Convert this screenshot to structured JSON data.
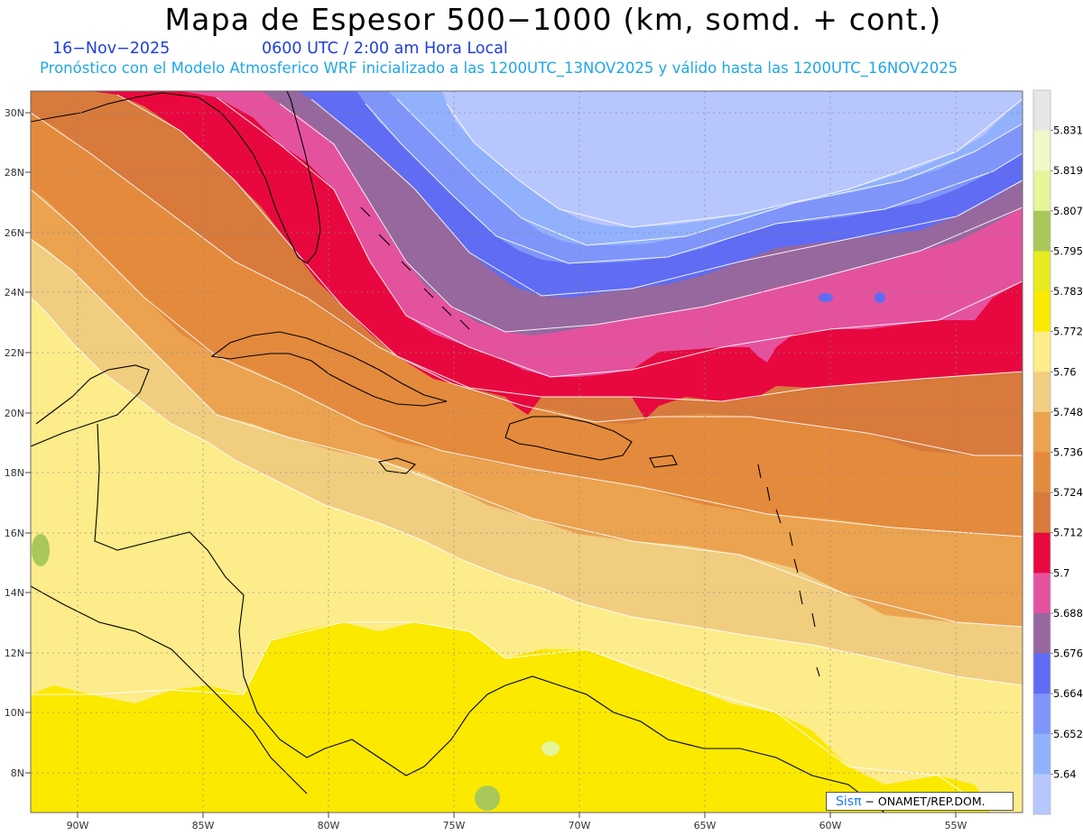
{
  "header": {
    "title": "Mapa de Espesor 500−1000 (km, somd. + cont.)",
    "date": "16−Nov−2025",
    "time": "0600 UTC / 2:00 am Hora Local",
    "description": "Pronóstico con el Modelo Atmosferico WRF inicializado a las 1200UTC_13NOV2025 y válido hasta las  1200UTC_16NOV2025"
  },
  "axes": {
    "lon_labels": [
      "90W",
      "85W",
      "80W",
      "75W",
      "70W",
      "65W",
      "60W",
      "55W"
    ],
    "lat_labels": [
      "30N",
      "28N",
      "26N",
      "24N",
      "22N",
      "20N",
      "18N",
      "16N",
      "14N",
      "12N",
      "10N",
      "8N"
    ]
  },
  "colorbar": {
    "labels": [
      "5.831",
      "5.819",
      "5.807",
      "5.795",
      "5.783",
      "5.772",
      "5.76",
      "5.748",
      "5.736",
      "5.724",
      "5.712",
      "5.7",
      "5.688",
      "5.676",
      "5.664",
      "5.652",
      "5.64"
    ],
    "colors": [
      "#e6e6e6",
      "#f2f7c9",
      "#e4f59b",
      "#a8c85a",
      "#e6ea1f",
      "#fbe900",
      "#fdec8a",
      "#f0cd7f",
      "#eba350",
      "#e48a3c",
      "#d77a3c",
      "#e8083f",
      "#e4529e",
      "#96689e",
      "#5f6cf3",
      "#7f95fa",
      "#92b1fd",
      "#b8c6fe"
    ]
  },
  "credit": {
    "brand": "Sisπ",
    "text": "− ONAMET/REP.DOM."
  }
}
